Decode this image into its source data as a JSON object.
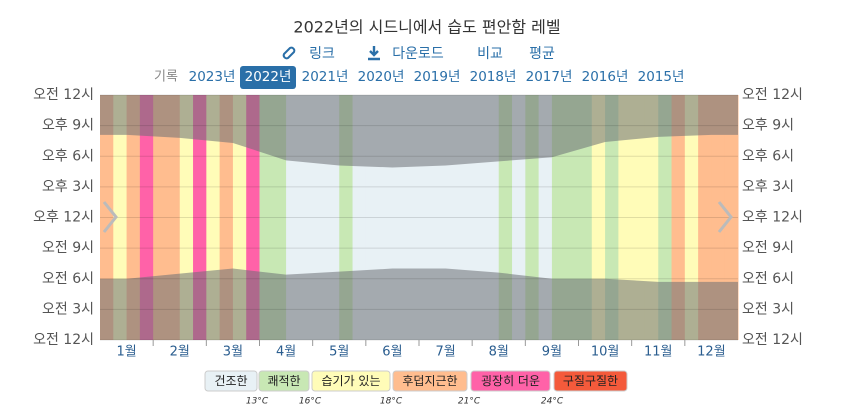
{
  "chart_data": {
    "type": "heatmap",
    "title": "2022년의 시드니에서 습도 편안함 레벨",
    "links": [
      "링크",
      "다운로드",
      "비교",
      "평균"
    ],
    "years_label": "기록",
    "years": [
      "2023년",
      "2022년",
      "2021년",
      "2020년",
      "2019년",
      "2018년",
      "2017년",
      "2016년",
      "2015년"
    ],
    "selected_year": 1,
    "categories": [
      "1월",
      "2월",
      "3월",
      "4월",
      "5월",
      "6월",
      "7월",
      "8월",
      "9월",
      "10월",
      "11월",
      "12월"
    ],
    "levels": [
      [
        3,
        2,
        3,
        4
      ],
      [
        3,
        3,
        2,
        4
      ],
      [
        2,
        3,
        2,
        4
      ],
      [
        1,
        1,
        0,
        0
      ],
      [
        0,
        0,
        1,
        0
      ],
      [
        0,
        0,
        0,
        0
      ],
      [
        0,
        0,
        0,
        0
      ],
      [
        0,
        0,
        1,
        0
      ],
      [
        1,
        0,
        1,
        1
      ],
      [
        1,
        2,
        1,
        2
      ],
      [
        2,
        2,
        1,
        3
      ],
      [
        2,
        3,
        3,
        3
      ]
    ],
    "legend": {
      "names": [
        "건조한",
        "쾌적한",
        "습기가 있는",
        "후덥지근한",
        "굉장히 더운",
        "구질구질한"
      ],
      "colors": [
        "#e8f1f5",
        "#c8e8b4",
        "#fffcb8",
        "#ffbd8f",
        "#ff62a8",
        "#f45a3b"
      ],
      "thresholds": [
        "13°C",
        "16°C",
        "18°C",
        "21°C",
        "24°C"
      ]
    },
    "sunrise": [
      6.0,
      6.5,
      7.0,
      6.4,
      6.7,
      7.0,
      7.0,
      6.6,
      6.0,
      6.0,
      5.7,
      5.7
    ],
    "sunset": [
      20.1,
      19.8,
      19.3,
      17.6,
      17.1,
      16.9,
      17.1,
      17.5,
      17.9,
      19.4,
      19.9,
      20.1
    ],
    "ylim": [
      0,
      24
    ],
    "yticks": [
      {
        "value": 24,
        "label": "오전 12시"
      },
      {
        "value": 21,
        "label": "오후 9시"
      },
      {
        "value": 18,
        "label": "오후 6시"
      },
      {
        "value": 15,
        "label": "오후 3시"
      },
      {
        "value": 12,
        "label": "오후 12시"
      },
      {
        "value": 9,
        "label": "오전 9시"
      },
      {
        "value": 6,
        "label": "오전 6시"
      },
      {
        "value": 3,
        "label": "오전 3시"
      },
      {
        "value": 0,
        "label": "오전 12시"
      }
    ],
    "grid": true
  }
}
